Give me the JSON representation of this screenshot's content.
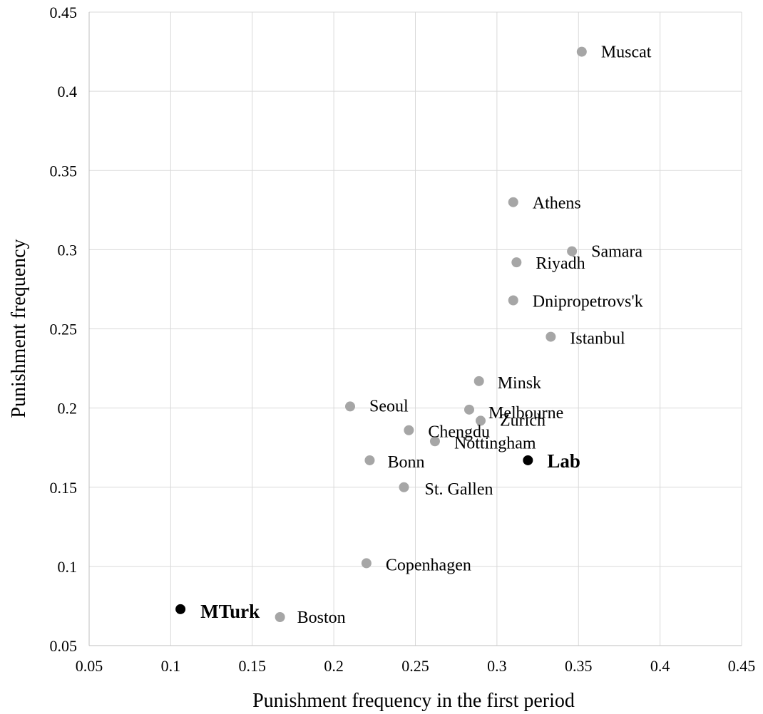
{
  "chart_data": {
    "type": "scatter",
    "xlabel": "Punishment frequency in the first period",
    "ylabel": "Punishment frequency",
    "xlim": [
      0.05,
      0.45
    ],
    "ylim": [
      0.05,
      0.45
    ],
    "xticks": [
      "0.05",
      "0.1",
      "0.15",
      "0.2",
      "0.25",
      "0.3",
      "0.35",
      "0.4",
      "0.45"
    ],
    "yticks": [
      "0.05",
      "0.1",
      "0.15",
      "0.2",
      "0.25",
      "0.3",
      "0.35",
      "0.4",
      "0.45"
    ],
    "grid": true,
    "colors": {
      "city": "#a6a6a6",
      "highlight": "#000000"
    },
    "points": [
      {
        "label": "Muscat",
        "x": 0.352,
        "y": 0.425,
        "group": "city"
      },
      {
        "label": "Athens",
        "x": 0.31,
        "y": 0.33,
        "group": "city"
      },
      {
        "label": "Samara",
        "x": 0.346,
        "y": 0.299,
        "group": "city"
      },
      {
        "label": "Riyadh",
        "x": 0.312,
        "y": 0.292,
        "group": "city"
      },
      {
        "label": "Dnipropetrovs'k",
        "x": 0.31,
        "y": 0.268,
        "group": "city"
      },
      {
        "label": "Istanbul",
        "x": 0.333,
        "y": 0.245,
        "group": "city"
      },
      {
        "label": "Minsk",
        "x": 0.289,
        "y": 0.217,
        "group": "city"
      },
      {
        "label": "Seoul",
        "x": 0.21,
        "y": 0.201,
        "group": "city"
      },
      {
        "label": "Melbourne",
        "x": 0.283,
        "y": 0.199,
        "group": "city"
      },
      {
        "label": "Zurich",
        "x": 0.29,
        "y": 0.192,
        "group": "city"
      },
      {
        "label": "Chengdu",
        "x": 0.246,
        "y": 0.186,
        "group": "city"
      },
      {
        "label": "Nottingham",
        "x": 0.262,
        "y": 0.179,
        "group": "city"
      },
      {
        "label": "Bonn",
        "x": 0.222,
        "y": 0.167,
        "group": "city"
      },
      {
        "label": "Lab",
        "x": 0.319,
        "y": 0.167,
        "group": "highlight"
      },
      {
        "label": "St. Gallen",
        "x": 0.243,
        "y": 0.15,
        "group": "city"
      },
      {
        "label": "Copenhagen",
        "x": 0.22,
        "y": 0.102,
        "group": "city"
      },
      {
        "label": "MTurk",
        "x": 0.106,
        "y": 0.073,
        "group": "highlight"
      },
      {
        "label": "Boston",
        "x": 0.167,
        "y": 0.068,
        "group": "city"
      }
    ]
  }
}
